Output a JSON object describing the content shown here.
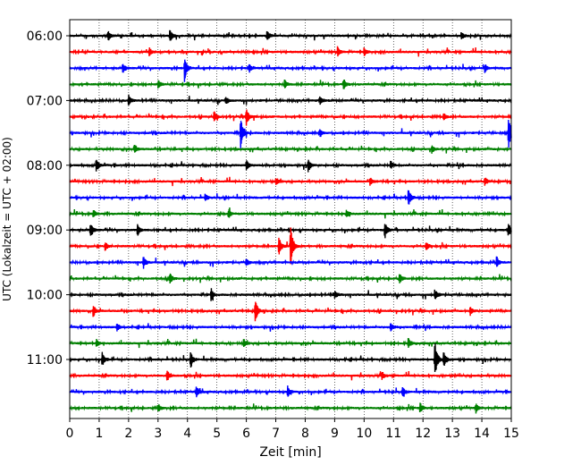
{
  "chart_data": {
    "type": "line",
    "subtype": "helicorder-seismogram",
    "xlabel": "Zeit  [min]",
    "ylabel": "UTC (Lokalzeit = UTC + 02:00)",
    "xlim": [
      0,
      15
    ],
    "x_ticks": [
      "0",
      "1",
      "2",
      "3",
      "4",
      "5",
      "6",
      "7",
      "8",
      "9",
      "10",
      "11",
      "12",
      "13",
      "14",
      "15"
    ],
    "y_tick_labels": [
      "06:00",
      "07:00",
      "08:00",
      "09:00",
      "10:00",
      "11:00"
    ],
    "grid": "vertical-dotted",
    "trace_minutes": 15,
    "trace_colors": [
      "#000000",
      "#ff0000",
      "#0000ff",
      "#008000"
    ],
    "traces": [
      {
        "start": "06:00",
        "color": "#000000",
        "events": [
          {
            "t": 1.3,
            "amp": 0.4
          },
          {
            "t": 3.4,
            "amp": 0.5
          },
          {
            "t": 6.7,
            "amp": 0.4
          },
          {
            "t": 13.3,
            "amp": 0.3
          }
        ]
      },
      {
        "start": "06:15",
        "color": "#ff0000",
        "events": [
          {
            "t": 2.7,
            "amp": 0.3
          },
          {
            "t": 9.1,
            "amp": 0.4
          },
          {
            "t": 10.0,
            "amp": 0.3
          }
        ]
      },
      {
        "start": "06:30",
        "color": "#0000ff",
        "events": [
          {
            "t": 1.8,
            "amp": 0.4
          },
          {
            "t": 3.9,
            "amp": 0.9
          },
          {
            "t": 6.1,
            "amp": 0.3
          },
          {
            "t": 14.1,
            "amp": 0.3
          }
        ]
      },
      {
        "start": "06:45",
        "color": "#008000",
        "events": [
          {
            "t": 3.0,
            "amp": 0.3
          },
          {
            "t": 7.3,
            "amp": 0.3
          },
          {
            "t": 9.3,
            "amp": 0.4
          }
        ]
      },
      {
        "start": "07:00",
        "color": "#000000",
        "events": [
          {
            "t": 2.0,
            "amp": 0.4
          },
          {
            "t": 5.3,
            "amp": 0.3
          },
          {
            "t": 8.5,
            "amp": 0.3
          }
        ]
      },
      {
        "start": "07:15",
        "color": "#ff0000",
        "events": [
          {
            "t": 4.9,
            "amp": 0.4
          },
          {
            "t": 6.0,
            "amp": 0.6
          },
          {
            "t": 12.7,
            "amp": 0.3
          }
        ]
      },
      {
        "start": "07:30",
        "color": "#0000ff",
        "events": [
          {
            "t": 5.8,
            "amp": 1.1
          },
          {
            "t": 8.5,
            "amp": 0.3
          },
          {
            "t": 14.9,
            "amp": 1.2
          }
        ]
      },
      {
        "start": "07:45",
        "color": "#008000",
        "events": [
          {
            "t": 2.2,
            "amp": 0.3
          },
          {
            "t": 12.3,
            "amp": 0.3
          }
        ]
      },
      {
        "start": "08:00",
        "color": "#000000",
        "events": [
          {
            "t": 0.9,
            "amp": 0.5
          },
          {
            "t": 6.0,
            "amp": 0.4
          },
          {
            "t": 8.1,
            "amp": 0.5
          },
          {
            "t": 10.9,
            "amp": 0.3
          }
        ]
      },
      {
        "start": "08:15",
        "color": "#ff0000",
        "events": [
          {
            "t": 7.0,
            "amp": 0.3
          },
          {
            "t": 10.2,
            "amp": 0.3
          },
          {
            "t": 14.1,
            "amp": 0.3
          }
        ]
      },
      {
        "start": "08:30",
        "color": "#0000ff",
        "events": [
          {
            "t": 4.6,
            "amp": 0.3
          },
          {
            "t": 11.5,
            "amp": 0.7
          }
        ]
      },
      {
        "start": "08:45",
        "color": "#008000",
        "events": [
          {
            "t": 0.8,
            "amp": 0.3
          },
          {
            "t": 5.4,
            "amp": 0.3
          },
          {
            "t": 9.4,
            "amp": 0.3
          }
        ]
      },
      {
        "start": "09:00",
        "color": "#000000",
        "events": [
          {
            "t": 0.7,
            "amp": 0.6
          },
          {
            "t": 2.3,
            "amp": 0.4
          },
          {
            "t": 10.7,
            "amp": 0.6
          },
          {
            "t": 14.9,
            "amp": 0.5
          }
        ]
      },
      {
        "start": "09:15",
        "color": "#ff0000",
        "events": [
          {
            "t": 1.2,
            "amp": 0.3
          },
          {
            "t": 7.1,
            "amp": 0.7
          },
          {
            "t": 7.5,
            "amp": 1.6
          },
          {
            "t": 12.1,
            "amp": 0.3
          }
        ]
      },
      {
        "start": "09:30",
        "color": "#0000ff",
        "events": [
          {
            "t": 2.5,
            "amp": 0.4
          },
          {
            "t": 6.0,
            "amp": 0.3
          },
          {
            "t": 14.5,
            "amp": 0.4
          }
        ]
      },
      {
        "start": "09:45",
        "color": "#008000",
        "events": [
          {
            "t": 3.4,
            "amp": 0.4
          },
          {
            "t": 11.2,
            "amp": 0.4
          }
        ]
      },
      {
        "start": "10:00",
        "color": "#000000",
        "events": [
          {
            "t": 4.8,
            "amp": 0.4
          },
          {
            "t": 9.0,
            "amp": 0.3
          },
          {
            "t": 12.4,
            "amp": 0.4
          }
        ]
      },
      {
        "start": "10:15",
        "color": "#ff0000",
        "events": [
          {
            "t": 0.8,
            "amp": 0.4
          },
          {
            "t": 6.3,
            "amp": 0.8
          },
          {
            "t": 13.6,
            "amp": 0.3
          }
        ]
      },
      {
        "start": "10:30",
        "color": "#0000ff",
        "events": [
          {
            "t": 1.6,
            "amp": 0.3
          },
          {
            "t": 10.9,
            "amp": 0.3
          }
        ]
      },
      {
        "start": "10:45",
        "color": "#008000",
        "events": [
          {
            "t": 0.9,
            "amp": 0.3
          },
          {
            "t": 5.9,
            "amp": 0.3
          },
          {
            "t": 11.5,
            "amp": 0.4
          }
        ]
      },
      {
        "start": "11:00",
        "color": "#000000",
        "events": [
          {
            "t": 1.1,
            "amp": 0.5
          },
          {
            "t": 4.1,
            "amp": 0.6
          },
          {
            "t": 12.4,
            "amp": 1.4
          },
          {
            "t": 12.7,
            "amp": 0.6
          }
        ]
      },
      {
        "start": "11:15",
        "color": "#ff0000",
        "events": [
          {
            "t": 3.3,
            "amp": 0.4
          },
          {
            "t": 10.6,
            "amp": 0.3
          }
        ]
      },
      {
        "start": "11:30",
        "color": "#0000ff",
        "events": [
          {
            "t": 4.3,
            "amp": 0.4
          },
          {
            "t": 7.4,
            "amp": 0.4
          },
          {
            "t": 11.3,
            "amp": 0.4
          }
        ]
      },
      {
        "start": "11:45",
        "color": "#008000",
        "events": [
          {
            "t": 3.0,
            "amp": 0.3
          },
          {
            "t": 11.9,
            "amp": 0.4
          },
          {
            "t": 13.8,
            "amp": 0.3
          }
        ]
      }
    ]
  }
}
